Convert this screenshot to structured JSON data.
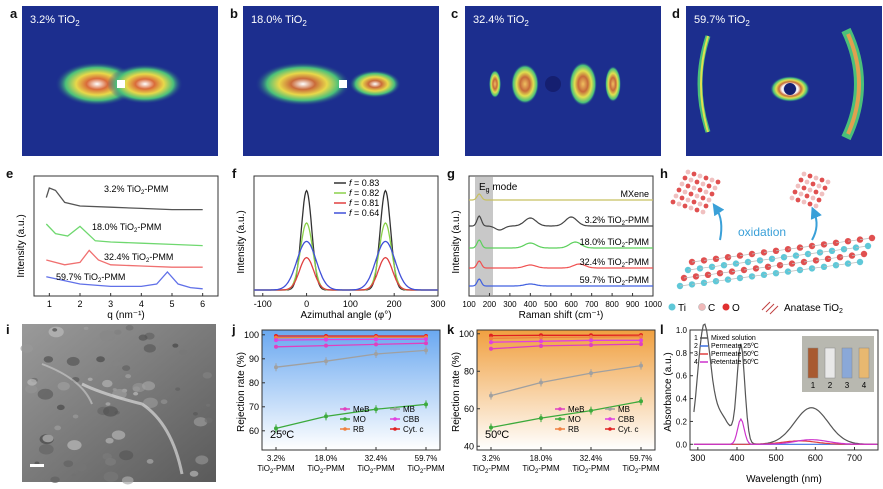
{
  "panel_labels": [
    "a",
    "b",
    "c",
    "d",
    "e",
    "f",
    "g",
    "h",
    "i",
    "j",
    "k",
    "l"
  ],
  "saxs": [
    {
      "label": "3.2% TiO2",
      "pct": "3.2% TiO",
      "sub": "2"
    },
    {
      "label": "18.0% TiO2",
      "pct": "18.0% TiO",
      "sub": "2"
    },
    {
      "label": "32.4% TiO2",
      "pct": "32.4% TiO",
      "sub": "2"
    },
    {
      "label": "59.7% TiO2",
      "pct": "59.7% TiO",
      "sub": "2"
    }
  ],
  "colors": {
    "black": "#222222",
    "green": "#2ca02c",
    "lightgreen": "#7ee07e",
    "red": "#e03030",
    "blue": "#3b4fd8",
    "gray": "#9a9a9a",
    "pink": "#e040c0",
    "magenta": "#cc33cc",
    "orange": "#f0a040"
  },
  "chart_data": [
    {
      "panel": "e",
      "type": "line",
      "xlabel": "q (nm⁻¹)",
      "ylabel": "Intensity (a.u.)",
      "xticks": [
        "1",
        "2",
        "3",
        "4",
        "5",
        "6"
      ],
      "xlim": [
        0.5,
        6.5
      ],
      "series": [
        {
          "name": "3.2% TiO2-PMM",
          "label_main": "3.2% TiO",
          "label_sub": "2",
          "label_tail": "-PMM",
          "color": "#555555",
          "x": [
            0.9,
            1.0,
            1.2,
            1.5,
            2.0,
            3.0,
            4.0,
            5.0,
            6.0
          ],
          "y": [
            0.82,
            0.9,
            0.88,
            0.78,
            0.75,
            0.74,
            0.73,
            0.72,
            0.72
          ]
        },
        {
          "name": "18.0% TiO2-PMM",
          "label_main": "18.0% TiO",
          "label_sub": "2",
          "label_tail": "-PMM",
          "color": "#6fd86f",
          "x": [
            0.9,
            1.2,
            1.6,
            2.0,
            2.5,
            3.0,
            4.0,
            5.0,
            6.0
          ],
          "y": [
            0.6,
            0.52,
            0.5,
            0.58,
            0.46,
            0.45,
            0.44,
            0.43,
            0.42
          ]
        },
        {
          "name": "32.4% TiO2-PMM",
          "label_main": "32.4% TiO",
          "label_sub": "2",
          "label_tail": "-PMM",
          "color": "#f07070",
          "x": [
            0.9,
            1.5,
            2.0,
            2.3,
            2.6,
            3.0,
            4.0,
            5.0,
            6.0
          ],
          "y": [
            0.3,
            0.26,
            0.28,
            0.38,
            0.3,
            0.26,
            0.25,
            0.24,
            0.24
          ]
        },
        {
          "name": "59.7% TiO2-PMM",
          "label_main": "59.7% TiO",
          "label_sub": "2",
          "label_tail": "-PMM",
          "color": "#6070e8",
          "x": [
            0.9,
            2.0,
            3.0,
            4.0,
            4.5,
            4.85,
            5.2,
            5.6,
            6.0
          ],
          "y": [
            0.16,
            0.1,
            0.08,
            0.08,
            0.1,
            0.2,
            0.1,
            0.07,
            0.06
          ]
        }
      ]
    },
    {
      "panel": "f",
      "type": "line",
      "xlabel": "Azimuthal angle (φ°)",
      "ylabel": "Intensity (a.u.)",
      "xticks": [
        "-100",
        "0",
        "100",
        "200",
        "300"
      ],
      "xlim": [
        -120,
        300
      ],
      "legend": [
        {
          "sym": "f",
          "val": " = 0.83",
          "color": "#333333"
        },
        {
          "sym": "f",
          "val": " = 0.82",
          "color": "#8bd14a"
        },
        {
          "sym": "f",
          "val": " = 0.81",
          "color": "#e04040"
        },
        {
          "sym": "f",
          "val": " = 0.64",
          "color": "#4050d8"
        }
      ],
      "series": [
        {
          "name": "f = 0.83",
          "color": "#333333",
          "amp": 0.92,
          "w": 12
        },
        {
          "name": "f = 0.82",
          "color": "#8bd14a",
          "amp": 0.62,
          "w": 14
        },
        {
          "name": "f = 0.81",
          "color": "#e04040",
          "amp": 0.3,
          "w": 16
        },
        {
          "name": "f = 0.64",
          "color": "#4050d8",
          "amp": 0.45,
          "w": 22
        }
      ],
      "peaks": [
        0,
        180
      ]
    },
    {
      "panel": "g",
      "type": "line",
      "xlabel": "Raman shift (cm⁻¹)",
      "ylabel": "Intensity (a.u.)",
      "xticks": [
        "100",
        "200",
        "300",
        "400",
        "500",
        "600",
        "700",
        "800",
        "900",
        "1000"
      ],
      "xlim": [
        100,
        1000
      ],
      "band_label": "E",
      "band_sub": "g",
      "band_tail": " mode",
      "series": [
        {
          "name": "MXene",
          "color": "#c8c060"
        },
        {
          "name": "3.2% TiO2-PMM",
          "label_main": "3.2% TiO",
          "label_sub": "2",
          "label_tail": "-PMM",
          "color": "#444444"
        },
        {
          "name": "18.0% TiO2-PMM",
          "label_main": "18.0% TiO",
          "label_sub": "2",
          "label_tail": "-PMM",
          "color": "#5cd05c"
        },
        {
          "name": "32.4% TiO2-PMM",
          "label_main": "32.4% TiO",
          "label_sub": "2",
          "label_tail": "-PMM",
          "color": "#f05050"
        },
        {
          "name": "59.7% TiO2-PMM",
          "label_main": "59.7% TiO",
          "label_sub": "2",
          "label_tail": "-PMM",
          "color": "#4060e0"
        }
      ]
    },
    {
      "panel": "j",
      "type": "line",
      "xlabel": "",
      "ylabel": "Rejection rate (%)",
      "categories": [
        "3.2%",
        "18.0%",
        "32.4%",
        "59.7%"
      ],
      "cat_sub": "TiO2-PMM",
      "cat_main": "TiO",
      "cat_sub2": "2",
      "cat_tail": "-PMM",
      "yticks": [
        "60",
        "70",
        "80",
        "90",
        "100"
      ],
      "ylim": [
        52,
        102
      ],
      "temperature": "25ºC",
      "legend": [
        {
          "name": "MeB",
          "color": "#e040c0"
        },
        {
          "name": "MB",
          "color": "#a0a0a0"
        },
        {
          "name": "MO",
          "color": "#3caa3c"
        },
        {
          "name": "CBB",
          "color": "#e040e0"
        },
        {
          "name": "RB",
          "color": "#f08040"
        },
        {
          "name": "Cyt. c",
          "color": "#e02020"
        }
      ],
      "series": [
        {
          "name": "Cyt. c",
          "color": "#e02020",
          "values": [
            99.5,
            99.5,
            99.5,
            99.5
          ]
        },
        {
          "name": "RB",
          "color": "#f08040",
          "values": [
            98.8,
            98.9,
            99.0,
            99.0
          ]
        },
        {
          "name": "CBB",
          "color": "#e040e0",
          "values": [
            97.8,
            98.0,
            98.1,
            98.2
          ]
        },
        {
          "name": "MeB",
          "color": "#e040c0",
          "values": [
            95.0,
            95.5,
            96.0,
            96.5
          ]
        },
        {
          "name": "MB",
          "color": "#a0a0a0",
          "values": [
            86.5,
            89.0,
            92.0,
            93.5
          ]
        },
        {
          "name": "MO",
          "color": "#3caa3c",
          "values": [
            61.0,
            66.0,
            69.0,
            71.0
          ]
        }
      ]
    },
    {
      "panel": "k",
      "type": "line",
      "xlabel": "",
      "ylabel": "Rejection rate (%)",
      "categories": [
        "3.2%",
        "18.0%",
        "32.4%",
        "59.7%"
      ],
      "cat_main": "TiO",
      "cat_sub2": "2",
      "cat_tail": "-PMM",
      "yticks": [
        "40",
        "60",
        "80",
        "100"
      ],
      "ylim": [
        38,
        102
      ],
      "temperature": "50ºC",
      "legend": [
        {
          "name": "MeB",
          "color": "#e040c0"
        },
        {
          "name": "MB",
          "color": "#a0a0a0"
        },
        {
          "name": "MO",
          "color": "#3caa3c"
        },
        {
          "name": "CBB",
          "color": "#e040e0"
        },
        {
          "name": "RB",
          "color": "#f08040"
        },
        {
          "name": "Cyt. c",
          "color": "#e02020"
        }
      ],
      "series": [
        {
          "name": "Cyt. c",
          "color": "#e02020",
          "values": [
            99.0,
            99.2,
            99.2,
            99.3
          ]
        },
        {
          "name": "RB",
          "color": "#f08040",
          "values": [
            97.5,
            98.0,
            98.2,
            98.5
          ]
        },
        {
          "name": "CBB",
          "color": "#e040e0",
          "values": [
            95.5,
            96.0,
            96.5,
            96.5
          ]
        },
        {
          "name": "MeB",
          "color": "#e040c0",
          "values": [
            92.0,
            93.5,
            94.0,
            94.5
          ]
        },
        {
          "name": "MB",
          "color": "#a0a0a0",
          "values": [
            67.0,
            74.0,
            79.0,
            83.0
          ]
        },
        {
          "name": "MO",
          "color": "#3caa3c",
          "values": [
            50.0,
            55.0,
            59.0,
            64.0
          ]
        }
      ]
    },
    {
      "panel": "l",
      "type": "line",
      "xlabel": "Wavelength (nm)",
      "ylabel": "Absorbance (a.u.)",
      "xticks": [
        "300",
        "400",
        "500",
        "600",
        "700"
      ],
      "xlim": [
        280,
        760
      ],
      "yticks": [
        "0.0",
        "0.2",
        "0.4",
        "0.6",
        "0.8",
        "1.0"
      ],
      "ylim": [
        -0.05,
        1.0
      ],
      "legend": [
        {
          "n": "1",
          "name": "Mixed solution",
          "color": "#555555"
        },
        {
          "n": "2",
          "name": "Permeate 25ºC",
          "color": "#3b6fe0"
        },
        {
          "n": "3",
          "name": "Permeate 50ºC",
          "color": "#e04040"
        },
        {
          "n": "4",
          "name": "Retentate 50ºC",
          "color": "#cc33cc"
        }
      ],
      "vial_labels": [
        "1",
        "2",
        "3",
        "4"
      ]
    }
  ],
  "h_labels": {
    "oxidation": "oxidation",
    "ti": "Ti",
    "c": "C",
    "o": "O",
    "anatase_main": "Anatase TiO",
    "anatase_sub": "2"
  }
}
